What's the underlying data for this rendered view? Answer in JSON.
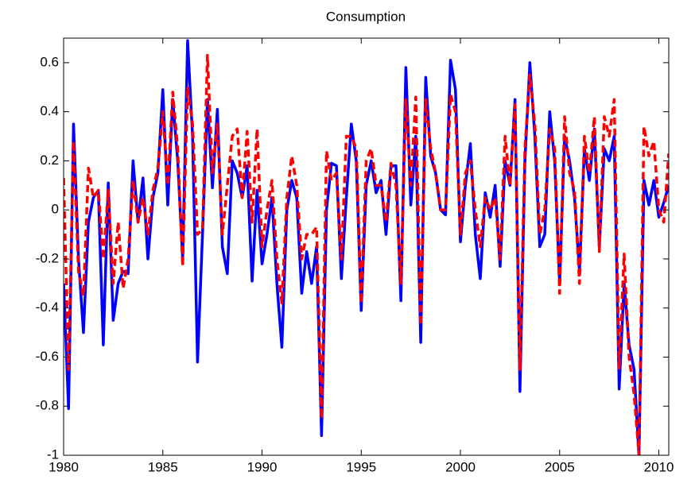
{
  "chart_data": {
    "type": "line",
    "title": "Consumption",
    "x": [
      1980,
      1980.25,
      1980.5,
      1980.75,
      1981,
      1981.25,
      1981.5,
      1981.75,
      1982,
      1982.25,
      1982.5,
      1982.75,
      1983,
      1983.25,
      1983.5,
      1983.75,
      1984,
      1984.25,
      1984.5,
      1984.75,
      1985,
      1985.25,
      1985.5,
      1985.75,
      1986,
      1986.25,
      1986.5,
      1986.75,
      1987,
      1987.25,
      1987.5,
      1987.75,
      1988,
      1988.25,
      1988.5,
      1988.75,
      1989,
      1989.25,
      1989.5,
      1989.75,
      1990,
      1990.25,
      1990.5,
      1990.75,
      1991,
      1991.25,
      1991.5,
      1991.75,
      1992,
      1992.25,
      1992.5,
      1992.75,
      1993,
      1993.25,
      1993.5,
      1993.75,
      1994,
      1994.25,
      1994.5,
      1994.75,
      1995,
      1995.25,
      1995.5,
      1995.75,
      1996,
      1996.25,
      1996.5,
      1996.75,
      1997,
      1997.25,
      1997.5,
      1997.75,
      1998,
      1998.25,
      1998.5,
      1998.75,
      1999,
      1999.25,
      1999.5,
      1999.75,
      2000,
      2000.25,
      2000.5,
      2000.75,
      2001,
      2001.25,
      2001.5,
      2001.75,
      2002,
      2002.25,
      2002.5,
      2002.75,
      2003,
      2003.25,
      2003.5,
      2003.75,
      2004,
      2004.25,
      2004.5,
      2004.75,
      2005,
      2005.25,
      2005.5,
      2005.75,
      2006,
      2006.25,
      2006.5,
      2006.75,
      2007,
      2007.25,
      2007.5,
      2007.75,
      2008,
      2008.25,
      2008.5,
      2008.75,
      2009,
      2009.25,
      2009.5,
      2009.75,
      2010,
      2010.25,
      2010.5
    ],
    "series": [
      {
        "color": "#0000ff",
        "dash": "solid",
        "values": [
          -0.3,
          -0.81,
          0.35,
          -0.2,
          -0.5,
          -0.05,
          0.05,
          0.08,
          -0.55,
          0.11,
          -0.45,
          -0.3,
          -0.25,
          -0.26,
          0.2,
          -0.05,
          0.13,
          -0.2,
          0.05,
          0.15,
          0.49,
          0.02,
          0.45,
          0.2,
          -0.2,
          0.69,
          0.3,
          -0.62,
          -0.1,
          0.45,
          0.09,
          0.41,
          -0.15,
          -0.26,
          0.2,
          0.15,
          0.05,
          0.18,
          -0.29,
          0.08,
          -0.22,
          -0.1,
          0.05,
          -0.3,
          -0.56,
          0,
          0.12,
          0.05,
          -0.34,
          -0.17,
          -0.3,
          -0.15,
          -0.92,
          0,
          0.19,
          0.18,
          -0.28,
          0.05,
          0.35,
          0.2,
          -0.41,
          0.1,
          0.2,
          0.07,
          0.12,
          -0.1,
          0.18,
          0.18,
          -0.37,
          0.58,
          0.02,
          0.3,
          -0.54,
          0.54,
          0.22,
          0.15,
          0,
          -0.02,
          0.61,
          0.49,
          -0.13,
          0.1,
          0.27,
          -0.1,
          -0.28,
          0.07,
          -0.03,
          0.1,
          -0.23,
          0.2,
          0.1,
          0.45,
          -0.74,
          0.2,
          0.6,
          0.3,
          -0.15,
          -0.1,
          0.4,
          0.2,
          -0.3,
          0.3,
          0.2,
          0.05,
          -0.25,
          0.25,
          0.12,
          0.33,
          -0.15,
          0.25,
          0.2,
          0.3,
          -0.73,
          -0.3,
          -0.55,
          -0.65,
          -1,
          0.12,
          0.02,
          0.12,
          -0.03,
          0.03,
          0.1
        ]
      },
      {
        "color": "#ff0000",
        "dash": "dashed",
        "values": [
          0.13,
          -0.65,
          0.28,
          -0.25,
          -0.35,
          0.17,
          0.05,
          0.08,
          -0.2,
          0.08,
          -0.3,
          -0.05,
          -0.32,
          -0.2,
          0.12,
          -0.05,
          0.05,
          -0.1,
          0.08,
          0.17,
          0.4,
          0.1,
          0.48,
          0.25,
          -0.23,
          0.5,
          0.35,
          -0.1,
          -0.08,
          0.63,
          0.15,
          0.35,
          -0.1,
          0.1,
          0.3,
          0.33,
          0.05,
          0.32,
          -0.05,
          0.33,
          -0.15,
          0,
          0.12,
          -0.2,
          -0.38,
          0.05,
          0.22,
          0.1,
          -0.2,
          -0.1,
          -0.1,
          -0.07,
          -0.85,
          0.24,
          0.12,
          0.15,
          -0.2,
          0.3,
          0.3,
          0.25,
          -0.38,
          0.2,
          0.25,
          0.1,
          0.1,
          -0.05,
          0.19,
          0.1,
          -0.3,
          0.45,
          0.1,
          0.46,
          -0.47,
          0.45,
          0.25,
          0.15,
          0,
          0,
          0.47,
          0.4,
          -0.1,
          0.15,
          0.2,
          0,
          -0.15,
          0.05,
          0,
          0.05,
          -0.2,
          0.3,
          0.1,
          0.43,
          -0.65,
          0.25,
          0.55,
          0.35,
          -0.1,
          0,
          0.33,
          0.25,
          -0.34,
          0.38,
          0.15,
          0.08,
          -0.3,
          0.3,
          0.15,
          0.38,
          -0.17,
          0.38,
          0.3,
          0.45,
          -0.65,
          -0.18,
          -0.6,
          -0.75,
          -1,
          0.34,
          0.22,
          0.28,
          0,
          -0.05,
          0.23
        ]
      }
    ],
    "xlim": [
      1980,
      2010.5
    ],
    "xticks": [
      1980,
      1985,
      1990,
      1995,
      2000,
      2005,
      2010
    ],
    "ylim": [
      -1,
      0.7
    ],
    "yticks": [
      -1,
      -0.8,
      -0.6,
      -0.4,
      -0.2,
      0,
      0.2,
      0.4,
      0.6
    ]
  }
}
